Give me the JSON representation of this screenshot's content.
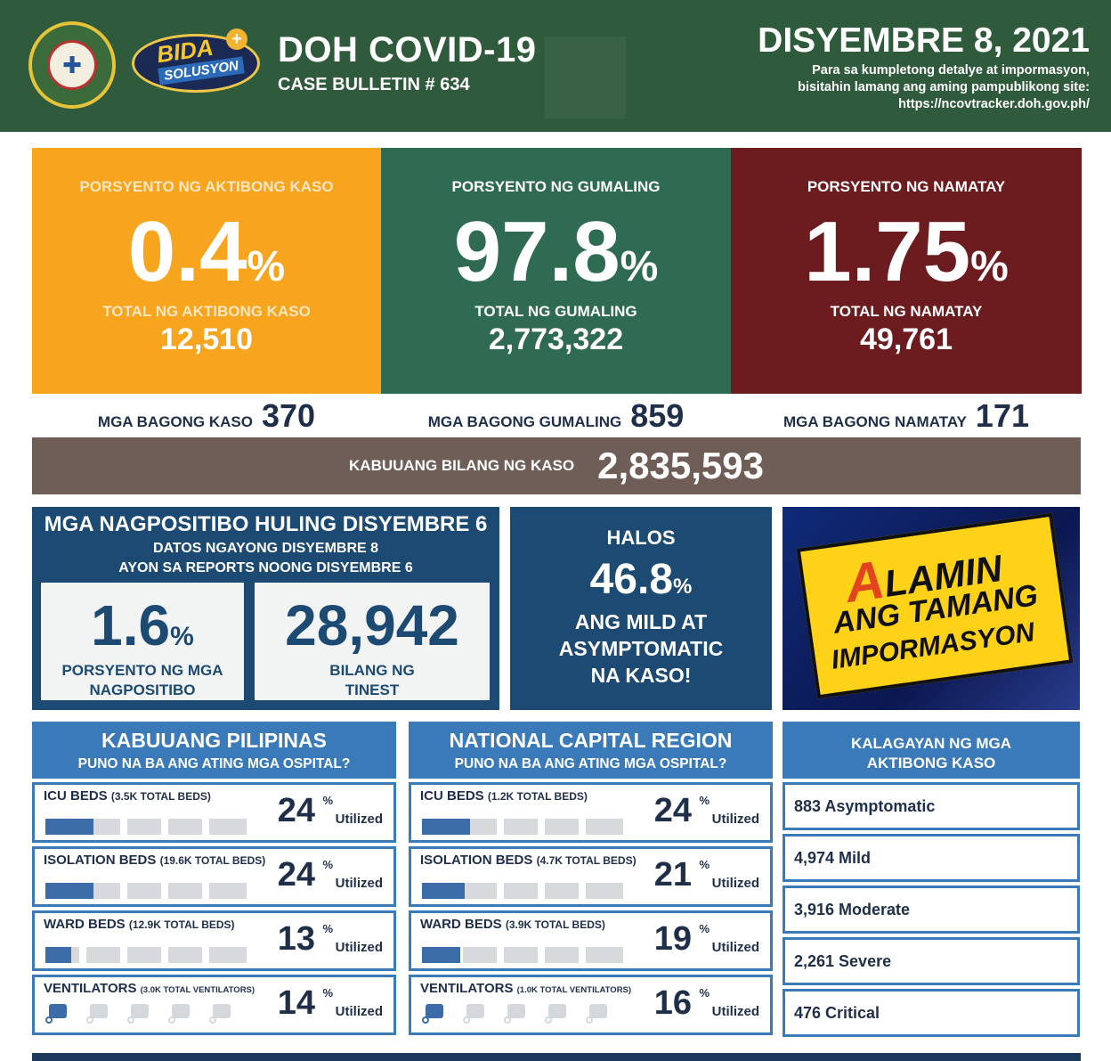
{
  "header": {
    "title": "DOH COVID-19",
    "bulletin": "CASE BULLETIN # 634",
    "date": "DISYEMBRE 8, 2021",
    "note_line1": "Para sa kumpletong detalye at impormasyon,",
    "note_line2": "bisitahin lamang ang aming pampublikong site:",
    "note_url": "https://ncovtracker.doh.gov.ph/",
    "logo_bida": "BIDA",
    "logo_solusyon": "SOLUSYON",
    "colors": {
      "header_bg": "#2f5a3c",
      "active": "#f7a51e",
      "recovered": "#2f6a52",
      "deaths": "#6c1c1f",
      "navy": "#1c4a72",
      "blue": "#3b7ab8"
    }
  },
  "stats": {
    "active": {
      "label": "PORSYENTO NG AKTIBONG KASO",
      "percent": "0.4",
      "total_label": "TOTAL NG AKTIBONG KASO",
      "total": "12,510",
      "new_label": "MGA BAGONG KASO",
      "new": "370"
    },
    "recovered": {
      "label": "PORSYENTO NG GUMALING",
      "percent": "97.8",
      "total_label": "TOTAL NG GUMALING",
      "total": "2,773,322",
      "new_label": "MGA BAGONG GUMALING",
      "new": "859"
    },
    "deaths": {
      "label": "PORSYENTO NG NAMATAY",
      "percent": "1.75",
      "total_label": "TOTAL NG NAMATAY",
      "total": "49,761",
      "new_label": "MGA BAGONG NAMATAY",
      "new": "171"
    },
    "percent_sign": "%"
  },
  "total_cases": {
    "label": "KABUUANG BILANG NG KASO",
    "value": "2,835,593"
  },
  "positivity": {
    "title": "MGA NAGPOSITIBO HULING DISYEMBRE 6",
    "sub1": "DATOS NGAYONG DISYEMBRE 8",
    "sub2": "AYON SA REPORTS NOONG DISYEMBRE 6",
    "rate": "1.6",
    "rate_label1": "PORSYENTO NG MGA",
    "rate_label2": "NAGPOSITIBO",
    "tested": "28,942",
    "tested_label1": "BILANG NG",
    "tested_label2": "TINEST"
  },
  "halos": {
    "line1": "HALOS",
    "value": "46.8",
    "line2": "ANG MILD AT",
    "line3": "ASYMPTOMATIC",
    "line4": "NA KASO!"
  },
  "alamin": {
    "letter": "A",
    "line1": "LAMIN",
    "line2": "ANG TAMANG",
    "line3": "IMPORMASYON"
  },
  "hospitals": {
    "utilized": "Utilized",
    "ph": {
      "title": "KABUUANG PILIPINAS",
      "subtitle": "PUNO NA BA ANG ATING MGA OSPITAL?",
      "rows": [
        {
          "name": "ICU BEDS",
          "total": "(3.5K TOTAL BEDS)",
          "percent": "24",
          "fill": 0.24
        },
        {
          "name": "ISOLATION BEDS",
          "total": "(19.6K TOTAL BEDS)",
          "percent": "24",
          "fill": 0.24
        },
        {
          "name": "WARD BEDS",
          "total": "(12.9K TOTAL BEDS)",
          "percent": "13",
          "fill": 0.13
        },
        {
          "name": "VENTILATORS",
          "total": "(3.0K TOTAL VENTILATORS)",
          "percent": "14",
          "fill": 0.14
        }
      ]
    },
    "ncr": {
      "title": "NATIONAL CAPITAL REGION",
      "subtitle": "PUNO NA BA ANG ATING MGA OSPITAL?",
      "rows": [
        {
          "name": "ICU BEDS",
          "total": "(1.2K TOTAL BEDS)",
          "percent": "24",
          "fill": 0.24
        },
        {
          "name": "ISOLATION BEDS",
          "total": "(4.7K TOTAL BEDS)",
          "percent": "21",
          "fill": 0.21
        },
        {
          "name": "WARD BEDS",
          "total": "(3.9K TOTAL BEDS)",
          "percent": "19",
          "fill": 0.19
        },
        {
          "name": "VENTILATORS",
          "total": "(1.0K TOTAL VENTILATORS)",
          "percent": "16",
          "fill": 0.16
        }
      ]
    }
  },
  "active_status": {
    "title_line1": "KALAGAYAN NG MGA",
    "title_line2": "AKTIBONG KASO",
    "items": [
      "883 Asymptomatic",
      "4,974 Mild",
      "3,916 Moderate",
      "2,261 Severe",
      "476 Critical"
    ]
  }
}
